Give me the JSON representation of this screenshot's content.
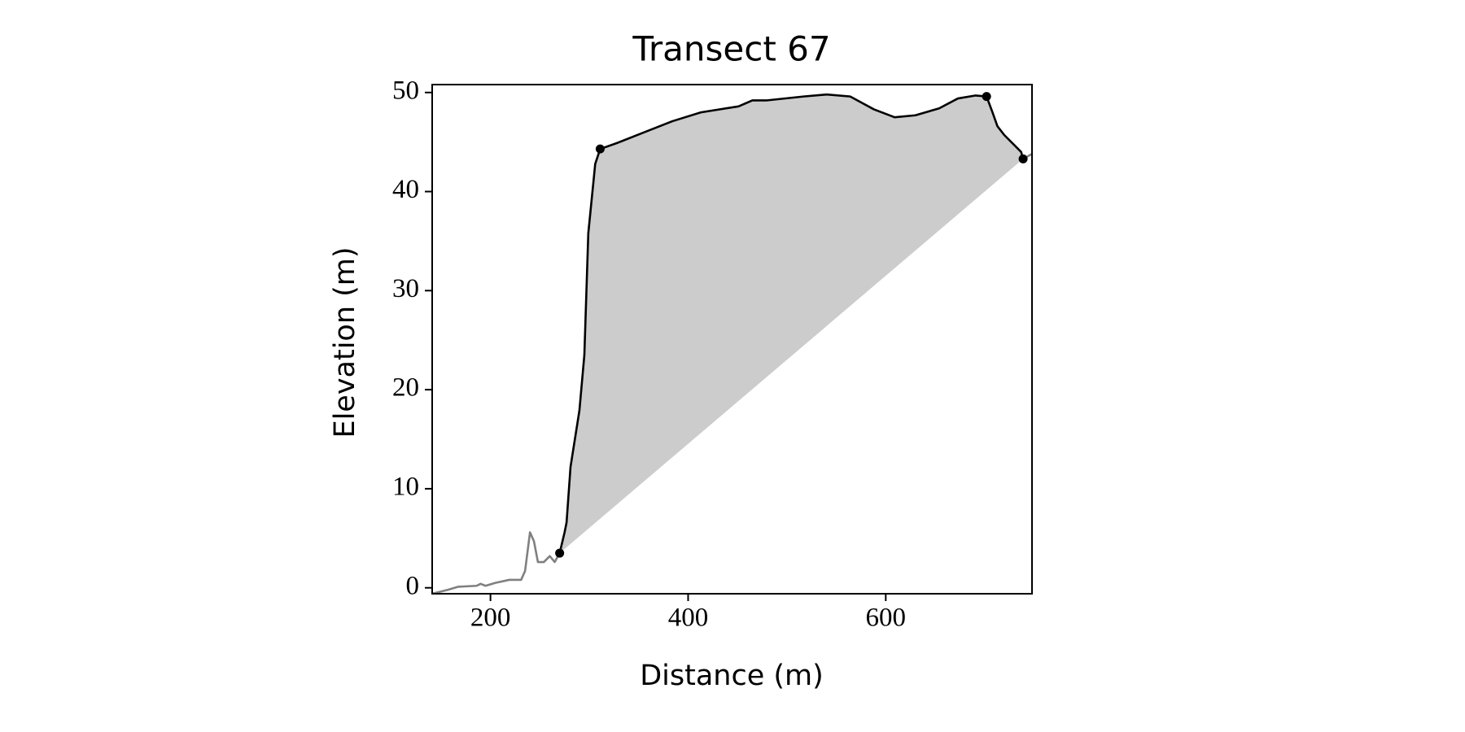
{
  "chart_data": {
    "type": "line",
    "title": "Transect 67",
    "x_label": "Distance (m)",
    "y_label": "Elevation (m)",
    "xlim": [
      141,
      748
    ],
    "ylim": [
      -0.6,
      50.8
    ],
    "xticks": [
      200,
      400,
      600
    ],
    "yticks": [
      0,
      10,
      20,
      30,
      40,
      50
    ],
    "fill_color": "#cccccc",
    "series": [
      {
        "color": "#808080",
        "x": [
          141,
          157,
          167,
          186,
          190,
          195,
          205,
          219,
          231,
          235,
          240,
          244,
          248,
          254,
          260,
          265,
          270
        ],
        "values": [
          -0.6,
          -0.2,
          0.1,
          0.2,
          0.4,
          0.2,
          0.5,
          0.8,
          0.8,
          1.7,
          5.6,
          4.7,
          2.6,
          2.6,
          3.2,
          2.6,
          3.5
        ]
      },
      {
        "color": "#000000",
        "fill": true,
        "x": [
          270,
          275,
          277,
          281,
          290,
          295,
          299,
          306,
          311,
          328,
          356,
          384,
          413,
          451,
          465,
          479,
          517,
          540,
          564,
          588,
          609,
          630,
          654,
          673,
          691,
          702,
          708,
          713,
          720,
          729,
          737,
          739
        ],
        "values": [
          3.5,
          5.6,
          6.6,
          12.2,
          17.9,
          23.5,
          35.8,
          42.8,
          44.3,
          44.9,
          46.0,
          47.1,
          48.0,
          48.6,
          49.2,
          49.2,
          49.6,
          49.8,
          49.6,
          48.3,
          47.5,
          47.7,
          48.4,
          49.4,
          49.7,
          49.6,
          48.0,
          46.6,
          45.7,
          44.8,
          44.0,
          43.3
        ]
      },
      {
        "color": "#808080",
        "x": [
          739,
          748
        ],
        "values": [
          43.3,
          43.8
        ]
      }
    ],
    "points": {
      "color": "#000000",
      "x": [
        270,
        311,
        702,
        739
      ],
      "values": [
        3.5,
        44.3,
        49.6,
        43.3
      ]
    }
  }
}
